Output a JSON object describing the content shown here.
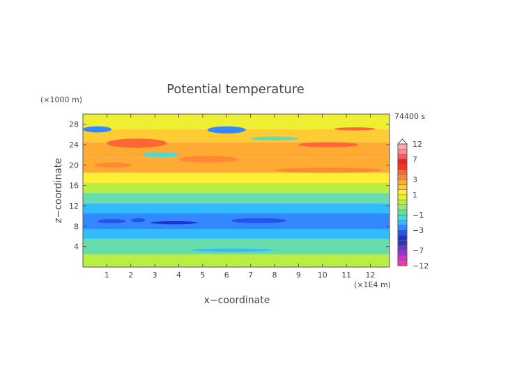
{
  "chart_data": {
    "type": "heatmap",
    "title": "Potential temperature",
    "xlabel": "x−coordinate",
    "ylabel": "z−coordinate",
    "x_unit": "(×1E4 m)",
    "y_unit": "(×1000 m)",
    "time_label": "74400 s",
    "x_ticks": [
      "1",
      "2",
      "3",
      "4",
      "5",
      "6",
      "7",
      "8",
      "9",
      "10",
      "11",
      "12"
    ],
    "y_ticks": [
      "4",
      "8",
      "12",
      "16",
      "20",
      "24",
      "28"
    ],
    "xlim": [
      0,
      12.8
    ],
    "ylim": [
      0,
      30
    ],
    "colorbar": {
      "labels": [
        "12",
        "7",
        "3",
        "1",
        "−1",
        "−3",
        "−7",
        "−12"
      ],
      "label_values": [
        12,
        7,
        3,
        1,
        -1,
        -3,
        -7,
        -12
      ],
      "levels": [
        -12,
        -10,
        -8,
        -7,
        -6,
        -5,
        -4,
        -3,
        -2,
        -1.5,
        -1,
        -0.5,
        0,
        0.5,
        1,
        1.5,
        2,
        3,
        4,
        5,
        6,
        7,
        8,
        10,
        12
      ],
      "colors": [
        "#ff33aa",
        "#cc33cc",
        "#9933cc",
        "#6633cc",
        "#3333aa",
        "#2233cc",
        "#2255ee",
        "#3388ff",
        "#33bbff",
        "#44dddd",
        "#66ddaa",
        "#99ee66",
        "#bbee44",
        "#eeee33",
        "#ffee33",
        "#ffcc33",
        "#ffaa33",
        "#ff8833",
        "#ff6633",
        "#ff3322",
        "#ee2222",
        "#ff5566",
        "#ff8899",
        "#ffaab0"
      ]
    },
    "bands": [
      {
        "z": [
          0,
          2.5
        ],
        "value": 0.2
      },
      {
        "z": [
          2.5,
          5.5
        ],
        "value": -0.6
      },
      {
        "z": [
          5.5,
          7.5
        ],
        "value": -1.6
      },
      {
        "z": [
          7.5,
          10.5
        ],
        "value": -2.6
      },
      {
        "z": [
          10.5,
          12.5
        ],
        "value": -1.9
      },
      {
        "z": [
          12.5,
          14.5
        ],
        "value": -0.8
      },
      {
        "z": [
          14.5,
          16.5
        ],
        "value": 0.4
      },
      {
        "z": [
          16.5,
          18.5
        ],
        "value": 1.3
      },
      {
        "z": [
          18.5,
          21.5
        ],
        "value": 2.4
      },
      {
        "z": [
          21.5,
          24.5
        ],
        "value": 2.8
      },
      {
        "z": [
          24.5,
          27
        ],
        "value": 1.5
      },
      {
        "z": [
          27,
          30
        ],
        "value": 0.6
      }
    ],
    "features": [
      {
        "x": [
          0.6,
          1.8
        ],
        "z": [
          8.6,
          9.4
        ],
        "value": -3.5
      },
      {
        "x": [
          2.0,
          2.6
        ],
        "z": [
          8.8,
          9.6
        ],
        "value": -3.5
      },
      {
        "x": [
          2.8,
          4.8
        ],
        "z": [
          8.4,
          9.0
        ],
        "value": -4.2
      },
      {
        "x": [
          6.2,
          8.5
        ],
        "z": [
          8.6,
          9.6
        ],
        "value": -3.8
      },
      {
        "x": [
          4.5,
          8.0
        ],
        "z": [
          3.0,
          3.6
        ],
        "value": -1.7
      },
      {
        "x": [
          0.0,
          1.2
        ],
        "z": [
          26.4,
          27.6
        ],
        "value": -2.2
      },
      {
        "x": [
          5.2,
          6.8
        ],
        "z": [
          26.2,
          27.6
        ],
        "value": -2.2
      },
      {
        "x": [
          1.0,
          3.5
        ],
        "z": [
          23.4,
          25.2
        ],
        "value": 4.8
      },
      {
        "x": [
          9.0,
          11.5
        ],
        "z": [
          23.5,
          24.5
        ],
        "value": 4.2
      },
      {
        "x": [
          4.0,
          6.5
        ],
        "z": [
          20.5,
          21.8
        ],
        "value": 3.8
      },
      {
        "x": [
          8.0,
          12.5
        ],
        "z": [
          18.5,
          19.5
        ],
        "value": 3.5
      },
      {
        "x": [
          0.5,
          2.0
        ],
        "z": [
          19.5,
          20.5
        ],
        "value": 3.6
      },
      {
        "x": [
          2.5,
          4.0
        ],
        "z": [
          21.5,
          22.5
        ],
        "value": -1.2
      },
      {
        "x": [
          7.0,
          9.0
        ],
        "z": [
          24.8,
          25.6
        ],
        "value": -0.6
      },
      {
        "x": [
          10.5,
          12.2
        ],
        "z": [
          26.8,
          27.4
        ],
        "value": 4.0
      }
    ],
    "grid": false
  }
}
